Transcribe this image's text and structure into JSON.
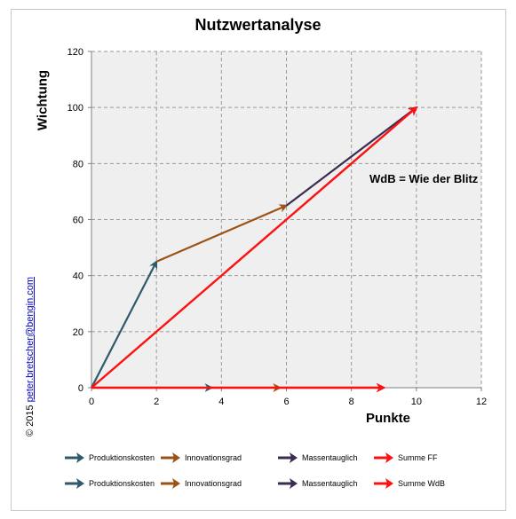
{
  "chart_data": {
    "type": "line",
    "title": "Nutzwertanalyse",
    "xlabel": "Punkte",
    "ylabel": "Wichtung",
    "xlim": [
      0,
      12
    ],
    "ylim": [
      0,
      120
    ],
    "x_ticks": [
      0,
      2,
      4,
      6,
      8,
      10,
      12
    ],
    "y_ticks": [
      0,
      20,
      40,
      60,
      80,
      100,
      120
    ],
    "grid": true,
    "annotation": "WdB = Wie der Blitz",
    "series": [
      {
        "name": "Produktionskosten",
        "group": "FF",
        "color": "#2e5a6b",
        "from": [
          0,
          0
        ],
        "to": [
          2,
          45
        ]
      },
      {
        "name": "Innovationsgrad",
        "group": "FF",
        "color": "#9c5214",
        "from": [
          2,
          45
        ],
        "to": [
          6,
          65
        ]
      },
      {
        "name": "Massentauglich",
        "group": "FF",
        "color": "#3b2d4f",
        "from": [
          6,
          65
        ],
        "to": [
          10,
          100
        ]
      },
      {
        "name": "Summe FF",
        "group": "FF",
        "color": "#ff1010",
        "from": [
          0,
          0
        ],
        "to": [
          10,
          100
        ]
      },
      {
        "name": "Produktionskosten",
        "group": "WdB",
        "color": "#2e5a6b",
        "from": [
          0,
          0
        ],
        "to": [
          3.7,
          0
        ]
      },
      {
        "name": "Innovationsgrad",
        "group": "WdB",
        "color": "#9c5214",
        "from": [
          3.7,
          0
        ],
        "to": [
          5.8,
          0
        ]
      },
      {
        "name": "Massentauglich",
        "group": "WdB",
        "color": "#3b2d4f",
        "from": [
          5.8,
          0
        ],
        "to": [
          9,
          0
        ]
      },
      {
        "name": "Summe WdB",
        "group": "WdB",
        "color": "#ff1010",
        "from": [
          0,
          0
        ],
        "to": [
          9,
          0
        ]
      }
    ]
  },
  "legend": {
    "row1": [
      {
        "label": "Produktionskosten",
        "color": "#2e5a6b"
      },
      {
        "label": "Innovationsgrad",
        "color": "#9c5214"
      },
      {
        "label": "Massentauglich",
        "color": "#3b2d4f"
      },
      {
        "label": "Summe FF",
        "color": "#ff1010"
      }
    ],
    "row2": [
      {
        "label": "Produktionskosten",
        "color": "#2e5a6b"
      },
      {
        "label": "Innovationsgrad",
        "color": "#9c5214"
      },
      {
        "label": "Massentauglich",
        "color": "#3b2d4f"
      },
      {
        "label": "Summe WdB",
        "color": "#ff1010"
      }
    ]
  },
  "copyright": {
    "prefix": "© 2015 ",
    "link": "peter.bretscher@bengin.com"
  },
  "colors": {
    "plot_bg": "#efefef",
    "grid": "#9a9a9a",
    "frame": "#c8c8c8"
  }
}
